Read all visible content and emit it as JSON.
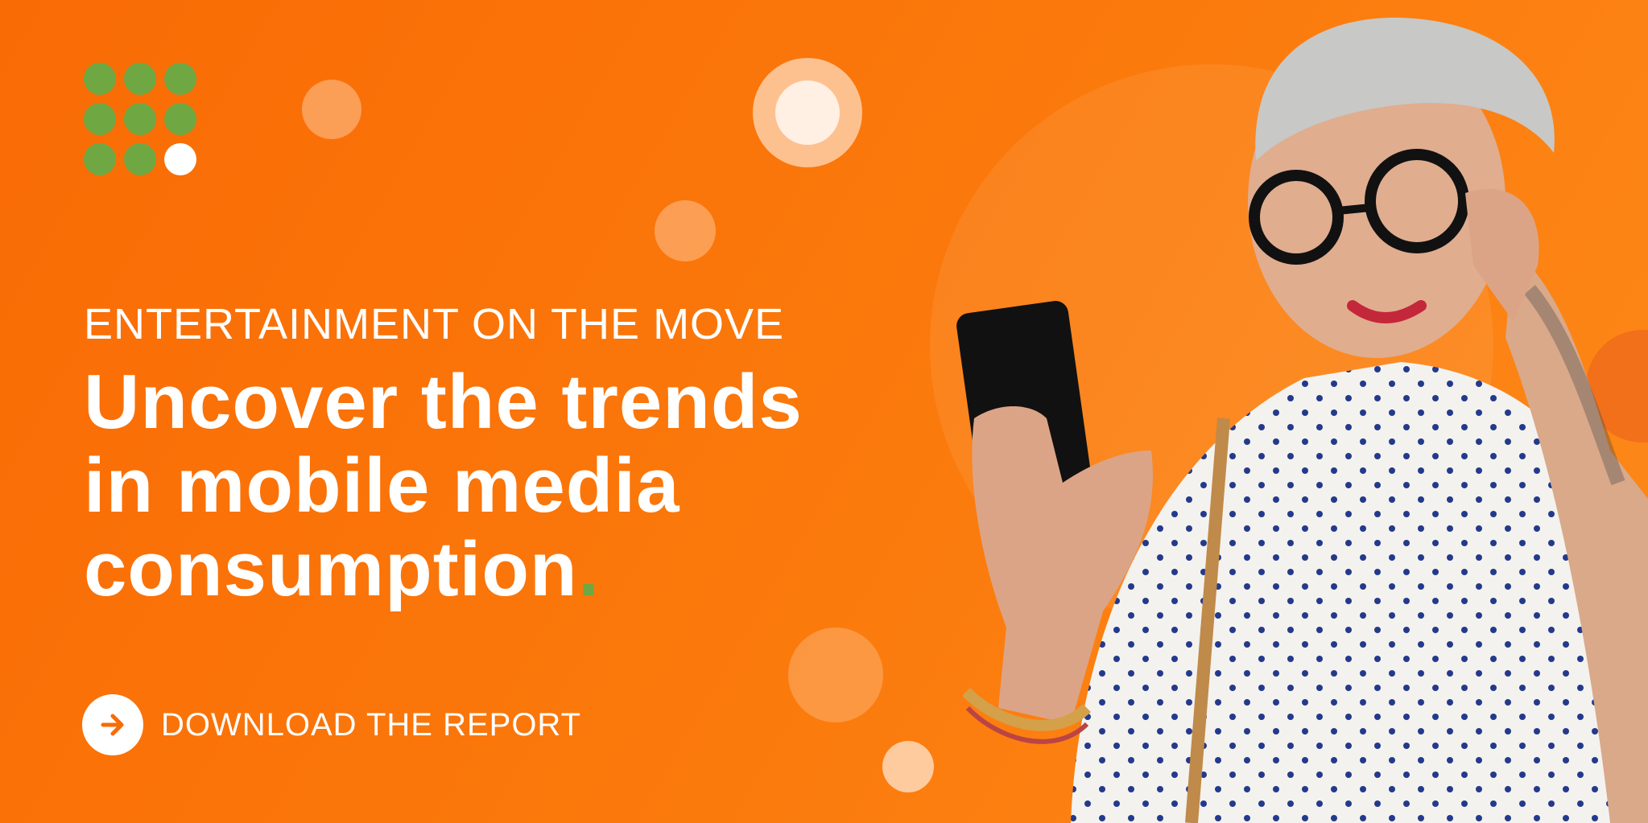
{
  "banner": {
    "eyebrow": "ENTERTAINMENT ON THE MOVE",
    "headline_lines": [
      "Uncover the trends",
      "in mobile media",
      "consumption"
    ],
    "headline_period": ".",
    "cta_label": "DOWNLOAD THE REPORT",
    "cta_icon": "arrow-right-icon"
  },
  "colors": {
    "background": "#fb7a0c",
    "brand_green": "#6fa843",
    "text": "#ffffff"
  },
  "logo": {
    "icon": "dot-grid-logo"
  },
  "image": {
    "subject": "woman-with-glasses-holding-phone"
  }
}
